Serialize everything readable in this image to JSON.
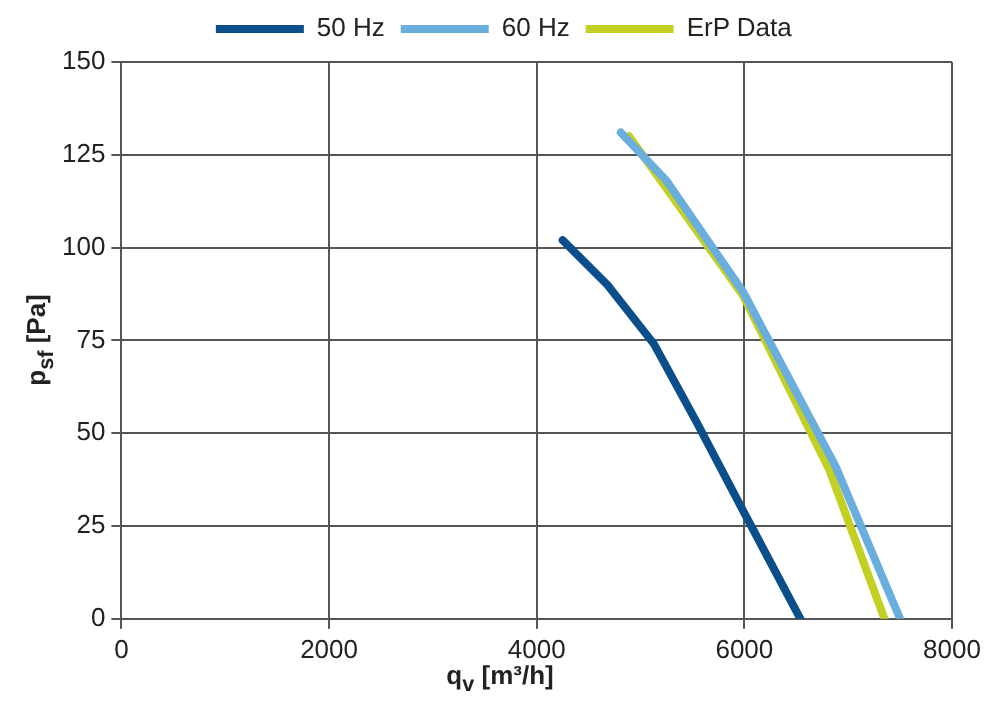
{
  "chart_data": {
    "type": "line",
    "xlabel": "q$_{v}$ [m³/h]",
    "ylabel": "p$_{sf}$ [Pa]",
    "xlim": [
      0,
      8000
    ],
    "xticks": [
      0,
      2000,
      4000,
      6000,
      8000
    ],
    "ylim": [
      0,
      150
    ],
    "yticks": [
      0,
      25,
      50,
      75,
      100,
      125,
      150
    ],
    "grid": true,
    "legend": "top",
    "marker": "none",
    "line_style": "solid",
    "series": [
      {
        "name": "50 Hz",
        "color": "#0b4f8a",
        "x": [
          4250,
          4680,
          5130,
          5540,
          5990,
          6540
        ],
        "values": [
          102,
          90,
          74,
          53,
          29,
          0
        ]
      },
      {
        "name": "60 Hz",
        "color": "#6aaede",
        "x": [
          4810,
          5250,
          5990,
          6880,
          7500
        ],
        "values": [
          131,
          118,
          88,
          41,
          0
        ]
      },
      {
        "name": "ErP Data",
        "color": "#c3cf22",
        "x": [
          4890,
          5990,
          6820,
          7350
        ],
        "values": [
          130,
          87,
          40,
          0
        ]
      }
    ]
  }
}
